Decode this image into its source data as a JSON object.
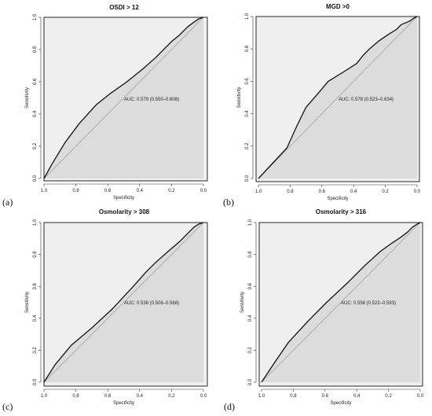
{
  "chart_data": [
    {
      "type": "line",
      "panel_letter": "(a)",
      "title": "OSDI > 12",
      "xlabel": "Specificity",
      "ylabel": "Sensitivity",
      "xlim": [
        1.0,
        0.0
      ],
      "ylim": [
        0.0,
        1.0
      ],
      "x_ticks": [
        "1.0",
        "0.8",
        "0.6",
        "0.4",
        "0.2",
        "0.0"
      ],
      "y_ticks": [
        "0.0",
        "0.2",
        "0.4",
        "0.6",
        "0.8",
        "1.0"
      ],
      "annotation": "AUC: 0.579 (0.550–0.608)",
      "colors": {
        "curve": "#111111",
        "below": "#dcdcdc",
        "above": "#efefef",
        "diagonal": "#9a9a9a"
      },
      "series": [
        {
          "specificity": [
            1.0,
            0.95,
            0.87,
            0.78,
            0.67,
            0.58,
            0.48,
            0.38,
            0.3,
            0.24,
            0.2,
            0.15,
            0.1,
            0.06,
            0.03,
            0.0
          ],
          "sensitivity": [
            0.0,
            0.09,
            0.22,
            0.34,
            0.46,
            0.53,
            0.6,
            0.68,
            0.75,
            0.81,
            0.85,
            0.89,
            0.94,
            0.97,
            0.99,
            1.0
          ]
        }
      ]
    },
    {
      "type": "line",
      "panel_letter": "(b)",
      "title": "MGD >0",
      "xlabel": "Specificity",
      "ylabel": "Sensitivity",
      "xlim": [
        1.0,
        0.0
      ],
      "ylim": [
        0.0,
        1.0
      ],
      "x_ticks": [
        "1.0",
        "0.8",
        "0.6",
        "0.4",
        "0.2",
        "0.0"
      ],
      "y_ticks": [
        "0.0",
        "0.2",
        "0.4",
        "0.6",
        "0.8",
        "1.0"
      ],
      "annotation": "AUC: 0.578 (0.523–0.634)",
      "colors": {
        "curve": "#111111",
        "below": "#dcdcdc",
        "above": "#efefef",
        "diagonal": "#9a9a9a"
      },
      "series": [
        {
          "specificity": [
            1.0,
            0.82,
            0.76,
            0.7,
            0.62,
            0.56,
            0.46,
            0.38,
            0.34,
            0.3,
            0.24,
            0.18,
            0.13,
            0.1,
            0.05,
            0.02,
            0.0
          ],
          "sensitivity": [
            0.0,
            0.19,
            0.32,
            0.44,
            0.53,
            0.6,
            0.66,
            0.71,
            0.76,
            0.8,
            0.85,
            0.89,
            0.92,
            0.95,
            0.97,
            0.99,
            1.0
          ]
        }
      ]
    },
    {
      "type": "line",
      "panel_letter": "(c)",
      "title": "Osmolarity > 308",
      "xlabel": "Specificity",
      "ylabel": "Sensitivity",
      "xlim": [
        1.0,
        0.0
      ],
      "ylim": [
        0.0,
        1.0
      ],
      "x_ticks": [
        "1.0",
        "0.8",
        "0.6",
        "0.4",
        "0.2",
        "0.0"
      ],
      "y_ticks": [
        "0.0",
        "0.2",
        "0.4",
        "0.6",
        "0.8",
        "1.0"
      ],
      "annotation": "AUC: 0.538 (0.508–0.568)",
      "colors": {
        "curve": "#111111",
        "below": "#dcdcdc",
        "above": "#efefef",
        "diagonal": "#9a9a9a"
      },
      "series": [
        {
          "specificity": [
            1.0,
            0.93,
            0.83,
            0.7,
            0.57,
            0.44,
            0.36,
            0.3,
            0.22,
            0.15,
            0.1,
            0.06,
            0.03,
            0.0
          ],
          "sensitivity": [
            0.0,
            0.11,
            0.23,
            0.34,
            0.46,
            0.6,
            0.69,
            0.75,
            0.82,
            0.88,
            0.93,
            0.97,
            0.99,
            1.0
          ]
        }
      ]
    },
    {
      "type": "line",
      "panel_letter": "(d)",
      "title": "Osmolarity > 316",
      "xlabel": "Specificity",
      "ylabel": "Sensitivity",
      "xlim": [
        1.0,
        0.0
      ],
      "ylim": [
        0.0,
        1.0
      ],
      "x_ticks": [
        "1.0",
        "0.8",
        "0.6",
        "0.4",
        "0.2",
        "0.0"
      ],
      "y_ticks": [
        "0.0",
        "0.2",
        "0.4",
        "0.6",
        "0.8",
        "1.0"
      ],
      "annotation": "AUC: 0.558 (0.522–0.593)",
      "colors": {
        "curve": "#111111",
        "below": "#dcdcdc",
        "above": "#efefef",
        "diagonal": "#9a9a9a"
      },
      "series": [
        {
          "specificity": [
            1.0,
            0.92,
            0.83,
            0.71,
            0.59,
            0.45,
            0.35,
            0.25,
            0.18,
            0.12,
            0.08,
            0.05,
            0.02,
            0.0
          ],
          "sensitivity": [
            0.0,
            0.12,
            0.25,
            0.38,
            0.5,
            0.63,
            0.73,
            0.82,
            0.87,
            0.91,
            0.94,
            0.97,
            0.99,
            1.0
          ]
        }
      ]
    }
  ]
}
